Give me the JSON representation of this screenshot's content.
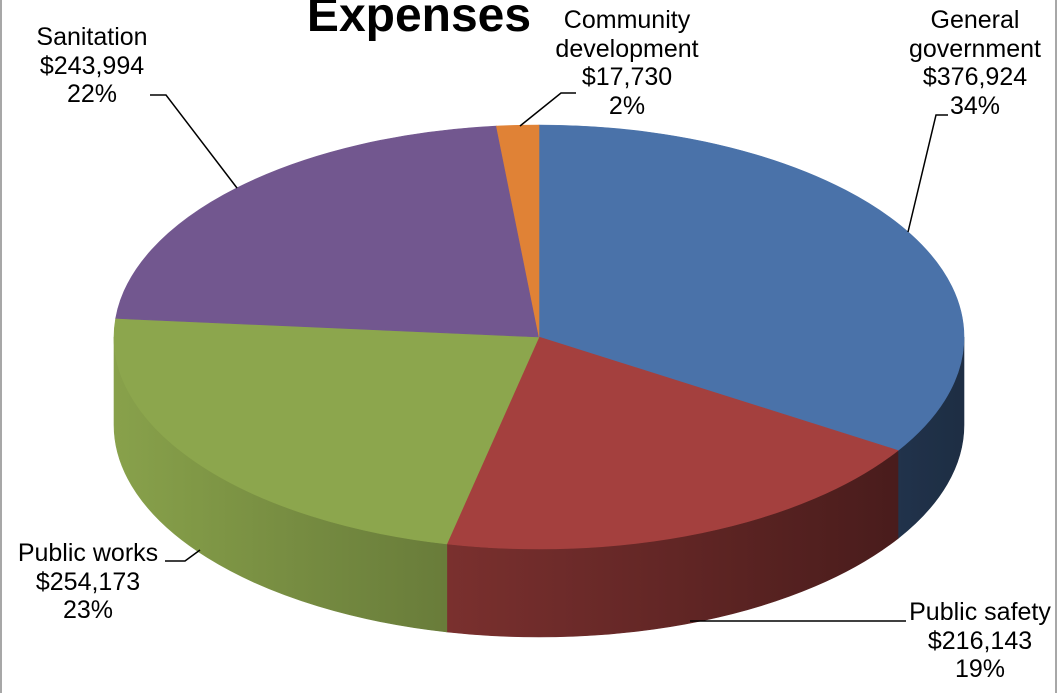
{
  "chart_data": {
    "type": "pie",
    "three_d": true,
    "legend": false,
    "title": "Expenses",
    "categories": [
      "General government",
      "Public safety",
      "Public works",
      "Sanitation",
      "Community development"
    ],
    "values": [
      376924,
      216143,
      254173,
      243994,
      17730
    ],
    "value_labels": [
      "$376,924",
      "$216,143",
      "$254,173",
      "$243,994",
      "$17,730"
    ],
    "percent_labels": [
      "34%",
      "19%",
      "23%",
      "22%",
      "2%"
    ],
    "colors": [
      "#4A72A9",
      "#A4403E",
      "#8CA64D",
      "#72578F",
      "#E08236"
    ]
  }
}
